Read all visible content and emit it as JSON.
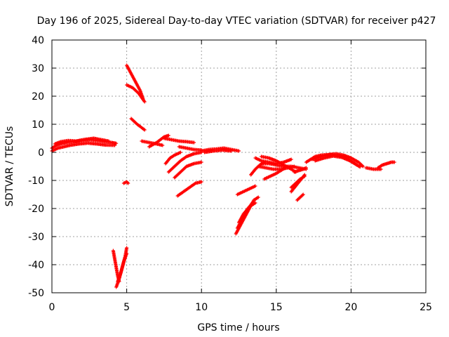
{
  "chart_data": {
    "type": "scatter",
    "title": "Day 196 of 2025, Sidereal Day-to-day VTEC variation (SDTVAR) for receiver p427",
    "xlabel": "GPS time / hours",
    "ylabel": "SDTVAR / TECUs",
    "xlim": [
      0,
      25
    ],
    "ylim": [
      -50,
      40
    ],
    "xticks": [
      0,
      5,
      10,
      15,
      20,
      25
    ],
    "yticks": [
      -50,
      -40,
      -30,
      -20,
      -10,
      0,
      10,
      20,
      30,
      40
    ],
    "grid": true,
    "marker": "plus",
    "color": "#ff0000",
    "segments": [
      {
        "name": "arc-01",
        "points": [
          [
            0.0,
            1.5
          ],
          [
            0.3,
            2.5
          ],
          [
            0.7,
            3.2
          ],
          [
            1.0,
            3.5
          ],
          [
            1.5,
            3.8
          ],
          [
            2.0,
            4.2
          ],
          [
            2.5,
            4.5
          ],
          [
            3.0,
            4.2
          ],
          [
            3.5,
            3.8
          ],
          [
            4.0,
            3.5
          ],
          [
            4.3,
            3.2
          ]
        ]
      },
      {
        "name": "arc-02",
        "points": [
          [
            0.0,
            0.5
          ],
          [
            0.4,
            1.5
          ],
          [
            0.8,
            2.0
          ],
          [
            1.2,
            2.5
          ],
          [
            1.8,
            3.0
          ],
          [
            2.4,
            3.3
          ],
          [
            3.0,
            3.0
          ],
          [
            3.6,
            2.6
          ],
          [
            4.2,
            2.5
          ]
        ]
      },
      {
        "name": "arc-03",
        "points": [
          [
            0.2,
            3.0
          ],
          [
            0.6,
            3.8
          ],
          [
            1.1,
            4.2
          ],
          [
            1.6,
            4.0
          ],
          [
            2.2,
            4.6
          ],
          [
            2.8,
            5.0
          ],
          [
            3.2,
            4.6
          ],
          [
            3.8,
            4.0
          ]
        ]
      },
      {
        "name": "arc-04",
        "points": [
          [
            4.1,
            -35
          ],
          [
            4.2,
            -38
          ],
          [
            4.3,
            -41
          ],
          [
            4.4,
            -44
          ],
          [
            4.5,
            -46
          ]
        ]
      },
      {
        "name": "arc-05",
        "points": [
          [
            4.3,
            -48
          ],
          [
            4.5,
            -45
          ],
          [
            4.7,
            -41
          ],
          [
            4.9,
            -37
          ],
          [
            5.0,
            -34
          ]
        ]
      },
      {
        "name": "arc-06",
        "points": [
          [
            4.4,
            -46
          ],
          [
            4.6,
            -43
          ],
          [
            4.8,
            -39
          ],
          [
            5.0,
            -36
          ]
        ]
      },
      {
        "name": "arc-07",
        "points": [
          [
            4.8,
            -11
          ],
          [
            5.0,
            -10.5
          ],
          [
            5.1,
            -11
          ]
        ]
      },
      {
        "name": "arc-08",
        "points": [
          [
            5.0,
            31
          ],
          [
            5.3,
            28
          ],
          [
            5.6,
            25
          ],
          [
            5.9,
            22
          ],
          [
            6.1,
            19
          ]
        ]
      },
      {
        "name": "arc-09",
        "points": [
          [
            5.0,
            24
          ],
          [
            5.4,
            23
          ],
          [
            5.8,
            21
          ],
          [
            6.2,
            18
          ]
        ]
      },
      {
        "name": "arc-10",
        "points": [
          [
            5.3,
            12
          ],
          [
            5.7,
            10
          ],
          [
            6.2,
            8
          ]
        ]
      },
      {
        "name": "arc-11",
        "points": [
          [
            6.0,
            4
          ],
          [
            6.5,
            3.5
          ],
          [
            7.0,
            3
          ],
          [
            7.4,
            2.5
          ]
        ]
      },
      {
        "name": "arc-12",
        "points": [
          [
            6.5,
            2
          ],
          [
            7.0,
            3.5
          ],
          [
            7.5,
            5.5
          ],
          [
            7.8,
            6
          ]
        ]
      },
      {
        "name": "arc-13",
        "points": [
          [
            7.5,
            5
          ],
          [
            8.0,
            4.5
          ],
          [
            8.5,
            4
          ],
          [
            9.0,
            3.8
          ],
          [
            9.5,
            3.5
          ]
        ]
      },
      {
        "name": "arc-14",
        "points": [
          [
            7.6,
            -4
          ],
          [
            7.9,
            -2
          ],
          [
            8.2,
            -1
          ],
          [
            8.6,
            0
          ]
        ]
      },
      {
        "name": "arc-15",
        "points": [
          [
            7.8,
            -7
          ],
          [
            8.2,
            -5
          ],
          [
            8.6,
            -3
          ],
          [
            9.0,
            -1.5
          ],
          [
            9.5,
            -0.5
          ],
          [
            10.0,
            0
          ]
        ]
      },
      {
        "name": "arc-16",
        "points": [
          [
            8.2,
            -9
          ],
          [
            8.6,
            -7
          ],
          [
            9.0,
            -5
          ],
          [
            9.5,
            -4
          ],
          [
            10.0,
            -3.5
          ]
        ]
      },
      {
        "name": "arc-17",
        "points": [
          [
            8.4,
            -15.5
          ],
          [
            8.8,
            -14
          ],
          [
            9.2,
            -12.5
          ],
          [
            9.6,
            -11
          ],
          [
            10.0,
            -10.5
          ]
        ]
      },
      {
        "name": "arc-18",
        "points": [
          [
            8.5,
            2
          ],
          [
            9.0,
            1.5
          ],
          [
            9.5,
            1
          ],
          [
            10.0,
            0.8
          ]
        ]
      },
      {
        "name": "arc-19",
        "points": [
          [
            10.0,
            0.5
          ],
          [
            10.5,
            1
          ],
          [
            11.0,
            1.2
          ],
          [
            11.5,
            1.5
          ],
          [
            12.0,
            1
          ],
          [
            12.5,
            0.5
          ]
        ]
      },
      {
        "name": "arc-20",
        "points": [
          [
            10.2,
            0
          ],
          [
            10.8,
            0.5
          ],
          [
            11.4,
            0.8
          ],
          [
            12.0,
            0.5
          ]
        ]
      },
      {
        "name": "arc-21",
        "points": [
          [
            12.3,
            -29
          ],
          [
            12.6,
            -26
          ],
          [
            12.9,
            -23
          ],
          [
            13.2,
            -20
          ],
          [
            13.5,
            -17
          ],
          [
            13.8,
            -16
          ]
        ]
      },
      {
        "name": "arc-22",
        "points": [
          [
            12.4,
            -27
          ],
          [
            12.7,
            -24
          ],
          [
            13.0,
            -21
          ],
          [
            13.3,
            -19
          ],
          [
            13.6,
            -18
          ]
        ]
      },
      {
        "name": "arc-23",
        "points": [
          [
            12.5,
            -25
          ],
          [
            12.8,
            -22
          ],
          [
            13.1,
            -20
          ],
          [
            13.4,
            -18
          ]
        ]
      },
      {
        "name": "arc-24",
        "points": [
          [
            12.4,
            -15
          ],
          [
            12.8,
            -14
          ],
          [
            13.2,
            -13
          ],
          [
            13.6,
            -12
          ]
        ]
      },
      {
        "name": "arc-25",
        "points": [
          [
            13.3,
            -8
          ],
          [
            13.6,
            -6
          ],
          [
            13.9,
            -4.5
          ],
          [
            14.2,
            -3.5
          ]
        ]
      },
      {
        "name": "arc-26",
        "points": [
          [
            13.6,
            -2
          ],
          [
            14.0,
            -3
          ],
          [
            14.5,
            -3.5
          ],
          [
            15.0,
            -4
          ],
          [
            15.5,
            -3.5
          ],
          [
            16.0,
            -2.5
          ]
        ]
      },
      {
        "name": "arc-27",
        "points": [
          [
            13.8,
            -5
          ],
          [
            14.3,
            -5.5
          ],
          [
            14.8,
            -6
          ],
          [
            15.3,
            -6
          ],
          [
            15.8,
            -5.5
          ],
          [
            16.2,
            -5
          ]
        ]
      },
      {
        "name": "arc-28",
        "points": [
          [
            14.0,
            -1.5
          ],
          [
            14.5,
            -2
          ],
          [
            15.0,
            -3
          ],
          [
            15.5,
            -4.5
          ],
          [
            16.0,
            -6
          ],
          [
            16.3,
            -7
          ]
        ]
      },
      {
        "name": "arc-29",
        "points": [
          [
            14.2,
            -9.5
          ],
          [
            14.6,
            -8.5
          ],
          [
            15.0,
            -7.5
          ],
          [
            15.3,
            -6.5
          ],
          [
            15.6,
            -5.5
          ]
        ]
      },
      {
        "name": "arc-30",
        "points": [
          [
            14.0,
            -4
          ],
          [
            14.5,
            -4
          ],
          [
            15.0,
            -4.5
          ],
          [
            15.5,
            -5
          ],
          [
            16.0,
            -5
          ],
          [
            16.5,
            -5.5
          ],
          [
            17.0,
            -6
          ]
        ]
      },
      {
        "name": "arc-31",
        "points": [
          [
            16.2,
            -7
          ],
          [
            16.5,
            -6.5
          ],
          [
            16.8,
            -6
          ],
          [
            17.0,
            -5.5
          ]
        ]
      },
      {
        "name": "arc-32",
        "points": [
          [
            16.0,
            -14
          ],
          [
            16.3,
            -12
          ],
          [
            16.6,
            -10
          ],
          [
            16.9,
            -8
          ]
        ]
      },
      {
        "name": "arc-33",
        "points": [
          [
            16.0,
            -12.5
          ],
          [
            16.3,
            -11
          ],
          [
            16.6,
            -9.5
          ],
          [
            16.9,
            -8.5
          ]
        ]
      },
      {
        "name": "arc-34",
        "points": [
          [
            16.4,
            -17
          ],
          [
            16.6,
            -16
          ],
          [
            16.8,
            -15
          ]
        ]
      },
      {
        "name": "arc-35",
        "points": [
          [
            17.0,
            -3.5
          ],
          [
            17.3,
            -2.5
          ],
          [
            17.6,
            -1.5
          ],
          [
            18.0,
            -1
          ],
          [
            18.5,
            -0.8
          ],
          [
            19.0,
            -0.5
          ],
          [
            19.5,
            -1
          ],
          [
            20.0,
            -2
          ],
          [
            20.5,
            -3.5
          ],
          [
            20.8,
            -5
          ]
        ]
      },
      {
        "name": "arc-36",
        "points": [
          [
            17.4,
            -2.5
          ],
          [
            18.0,
            -1.5
          ],
          [
            18.6,
            -0.8
          ],
          [
            19.2,
            -1.2
          ],
          [
            19.8,
            -2.5
          ],
          [
            20.4,
            -4.5
          ]
        ]
      },
      {
        "name": "arc-37",
        "points": [
          [
            17.6,
            -3
          ],
          [
            18.2,
            -2
          ],
          [
            18.8,
            -1.3
          ],
          [
            19.4,
            -1.8
          ],
          [
            20.0,
            -3.2
          ],
          [
            20.6,
            -5.2
          ]
        ]
      },
      {
        "name": "arc-38",
        "points": [
          [
            21.0,
            -5.5
          ],
          [
            21.5,
            -6
          ],
          [
            22.0,
            -6
          ]
        ]
      },
      {
        "name": "arc-39",
        "points": [
          [
            21.8,
            -5.5
          ],
          [
            22.1,
            -4.5
          ],
          [
            22.4,
            -4
          ],
          [
            22.7,
            -3.5
          ],
          [
            22.9,
            -3.5
          ]
        ]
      }
    ]
  }
}
